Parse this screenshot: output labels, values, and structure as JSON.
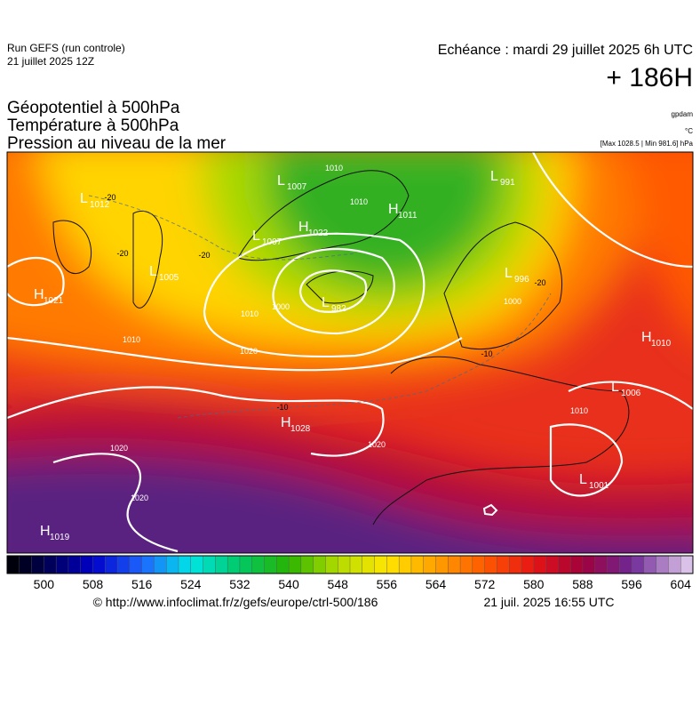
{
  "header": {
    "run": "Run GEFS (run controle)",
    "run_date": "21 juillet 2025 12Z",
    "valid": "Echéance : mardi 29 juillet 2025 6h UTC",
    "lead": "+ 186H"
  },
  "titles": [
    "Géopotentiel à 500hPa",
    "Température à 500hPa",
    "Pression au niveau de la mer"
  ],
  "units": {
    "geopotential": "gpdam",
    "temperature": "°C",
    "pressure_range": "[Max 1028.5 | Min 981.6] hPa"
  },
  "map": {
    "centers": [
      {
        "letter": "L",
        "value": "1012"
      },
      {
        "letter": "H",
        "value": "1021"
      },
      {
        "letter": "L",
        "value": "1005"
      },
      {
        "letter": "L",
        "value": "1007"
      },
      {
        "letter": "H",
        "value": "1022"
      },
      {
        "letter": "L",
        "value": "1007"
      },
      {
        "letter": "L",
        "value": "982"
      },
      {
        "letter": "H",
        "value": "1011"
      },
      {
        "letter": "L",
        "value": "991"
      },
      {
        "letter": "L",
        "value": "996"
      },
      {
        "letter": "H",
        "value": "1010"
      },
      {
        "letter": "L",
        "value": "1006"
      },
      {
        "letter": "H",
        "value": "1028"
      },
      {
        "letter": "L",
        "value": "1001"
      },
      {
        "letter": "H",
        "value": "1019"
      }
    ],
    "isobar_labels": [
      "1010",
      "1010",
      "1010",
      "1000",
      "1010",
      "1020",
      "1020",
      "1020",
      "1020",
      "1000",
      "1010"
    ],
    "temperature_labels": [
      "-20",
      "-20",
      "-20",
      "-10",
      "-20",
      "-10"
    ]
  },
  "colorbar": {
    "range": [
      494,
      606
    ],
    "step": 2,
    "ticks": [
      500,
      508,
      516,
      524,
      532,
      540,
      548,
      556,
      564,
      572,
      580,
      588,
      596,
      604
    ],
    "colors": [
      [
        494,
        "#000000"
      ],
      [
        500,
        "#00004a"
      ],
      [
        508,
        "#0000c8"
      ],
      [
        516,
        "#1e64ff"
      ],
      [
        524,
        "#00e6e6"
      ],
      [
        532,
        "#00c864"
      ],
      [
        540,
        "#28b400"
      ],
      [
        548,
        "#b4dc00"
      ],
      [
        556,
        "#ffe600"
      ],
      [
        564,
        "#ffa000"
      ],
      [
        572,
        "#ff5a00"
      ],
      [
        580,
        "#e61414"
      ],
      [
        588,
        "#a0003c"
      ],
      [
        596,
        "#6e2896"
      ],
      [
        606,
        "#e6d2f0"
      ]
    ]
  },
  "footer": {
    "source": "© http://www.infoclimat.fr/z/gefs/europe/ctrl-500/186",
    "generated": "21 juil. 2025 16:55 UTC"
  }
}
